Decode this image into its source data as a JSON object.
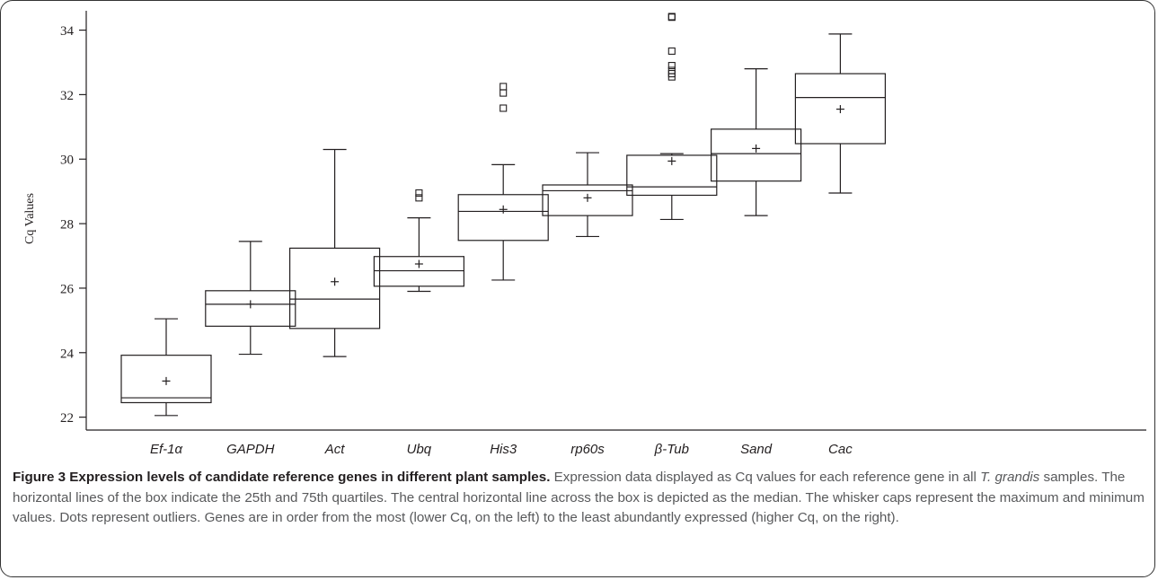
{
  "chart_data": {
    "type": "box",
    "ylabel": "Cq Values",
    "xlabel": "",
    "ylim": [
      21.6,
      34.6
    ],
    "yticks": [
      22,
      24,
      26,
      28,
      30,
      32,
      34
    ],
    "grid": false,
    "categories": [
      "Ef-1α",
      "GAPDH",
      "Act",
      "Ubq",
      "His3",
      "rp60s",
      "β-Tub",
      "Sand",
      "Cac"
    ],
    "boxes": [
      {
        "name": "Ef-1α",
        "min": 22.05,
        "q1": 22.45,
        "median": 22.6,
        "q3": 23.92,
        "max": 25.05,
        "mean": 23.12,
        "outliers": []
      },
      {
        "name": "GAPDH",
        "min": 23.95,
        "q1": 24.82,
        "median": 25.5,
        "q3": 25.92,
        "max": 27.45,
        "mean": 25.5,
        "outliers": []
      },
      {
        "name": "Act",
        "min": 23.88,
        "q1": 24.75,
        "median": 25.66,
        "q3": 27.24,
        "max": 30.3,
        "mean": 26.2,
        "outliers": []
      },
      {
        "name": "Ubq",
        "min": 25.9,
        "q1": 26.06,
        "median": 26.54,
        "q3": 26.98,
        "max": 28.18,
        "mean": 26.75,
        "outliers": [
          28.8,
          28.95
        ]
      },
      {
        "name": "His3",
        "min": 26.25,
        "q1": 27.48,
        "median": 28.38,
        "q3": 28.9,
        "max": 29.83,
        "mean": 28.44,
        "outliers": [
          31.58,
          32.05,
          32.25
        ]
      },
      {
        "name": "rp60s",
        "min": 27.6,
        "q1": 28.25,
        "median": 29.02,
        "q3": 29.2,
        "max": 30.2,
        "mean": 28.8,
        "outliers": []
      },
      {
        "name": "β-Tub",
        "min": 28.13,
        "q1": 28.88,
        "median": 29.14,
        "q3": 30.12,
        "max": 30.17,
        "mean": 29.94,
        "outliers": [
          32.55,
          32.65,
          32.75,
          32.9,
          33.35,
          34.4,
          34.42
        ]
      },
      {
        "name": "Sand",
        "min": 28.25,
        "q1": 29.32,
        "median": 30.17,
        "q3": 30.93,
        "max": 32.8,
        "mean": 30.33,
        "outliers": []
      },
      {
        "name": "Cac",
        "min": 28.95,
        "q1": 30.48,
        "median": 31.91,
        "q3": 32.65,
        "max": 33.88,
        "mean": 31.55,
        "outliers": []
      }
    ]
  },
  "caption": {
    "bold": "Figure 3 Expression levels of candidate reference genes in different plant samples.",
    "text1": " Expression data displayed as Cq values for each reference gene in all ",
    "italic": "T. grandis",
    "text2": " samples. The horizontal lines of the box indicate the 25th and 75th quartiles. The central horizontal line across the box is depicted as the median. The whisker caps represent the maximum and minimum values. Dots represent outliers. Genes are in order from the most (lower Cq, on the left) to the least abundantly expressed (higher Cq, on the right)."
  },
  "colors": {
    "line": "#231f20",
    "caption_text": "#58595b",
    "frame": "#333333"
  }
}
